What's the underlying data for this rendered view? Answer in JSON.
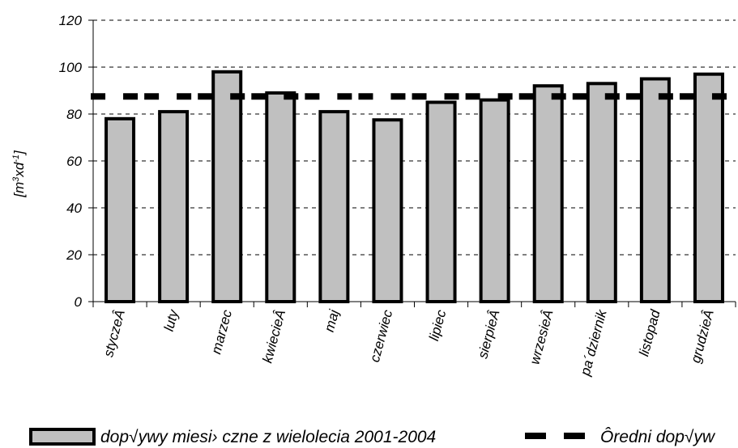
{
  "chart_data": {
    "type": "bar",
    "ylabel_main": "[m",
    "ylabel_sup1": "3",
    "ylabel_mid": "xd",
    "ylabel_sup2": "-1",
    "ylabel_end": "]",
    "ylim": [
      0,
      120
    ],
    "yticks": [
      "0",
      "20",
      "40",
      "60",
      "80",
      "100",
      "120"
    ],
    "categories": [
      "styczeÂ",
      "luty",
      "marzec",
      "kwiecieÂ",
      "maj",
      "czerwiec",
      "lipiec",
      "sierpieÂ",
      "wrzesieÂ",
      "pa´dziernik",
      "listopad",
      "grudzieÂ"
    ],
    "series": [
      {
        "name": "dop√ywy miesi› czne z wielolecia 2001-2004",
        "type": "bar",
        "values": [
          78,
          81,
          98,
          89,
          81,
          77.5,
          85,
          86,
          92,
          93,
          95,
          97
        ]
      },
      {
        "name": "Ôredni dop√yw",
        "type": "line-dashed",
        "values": [
          87.5,
          87.5,
          87.5,
          87.5,
          87.5,
          87.5,
          87.5,
          87.5,
          87.5,
          87.5,
          87.5,
          87.5
        ]
      }
    ],
    "grid": "horizontal dashed",
    "legend": "bottom",
    "colors": {
      "bar_fill": "#c0c0c0",
      "bar_stroke": "#000000",
      "mean_line": "#000000"
    }
  }
}
